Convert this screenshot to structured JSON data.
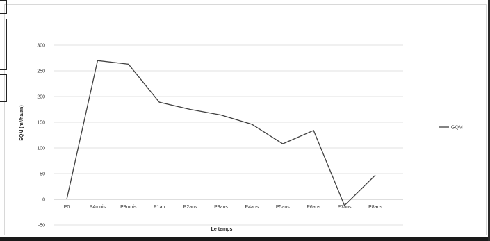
{
  "chart_data": {
    "type": "line",
    "categories": [
      "P0",
      "P4mois",
      "P8mois",
      "P1an",
      "P2ans",
      "P3ans",
      "P4ans",
      "P5ans",
      "P6ans",
      "P7ans",
      "P8ans"
    ],
    "series": [
      {
        "name": "GQM",
        "values": [
          0,
          270,
          263,
          189,
          175,
          164,
          146,
          108,
          134,
          -12,
          47
        ]
      }
    ],
    "title": "",
    "xlabel": "Le temps",
    "ylabel": "EQM (m³/ha/an)",
    "ylim": [
      -50,
      300
    ],
    "yticks": [
      -50,
      0,
      50,
      100,
      150,
      200,
      250,
      300
    ],
    "grid": true,
    "legend_position": "right",
    "line_color": "#404040"
  }
}
